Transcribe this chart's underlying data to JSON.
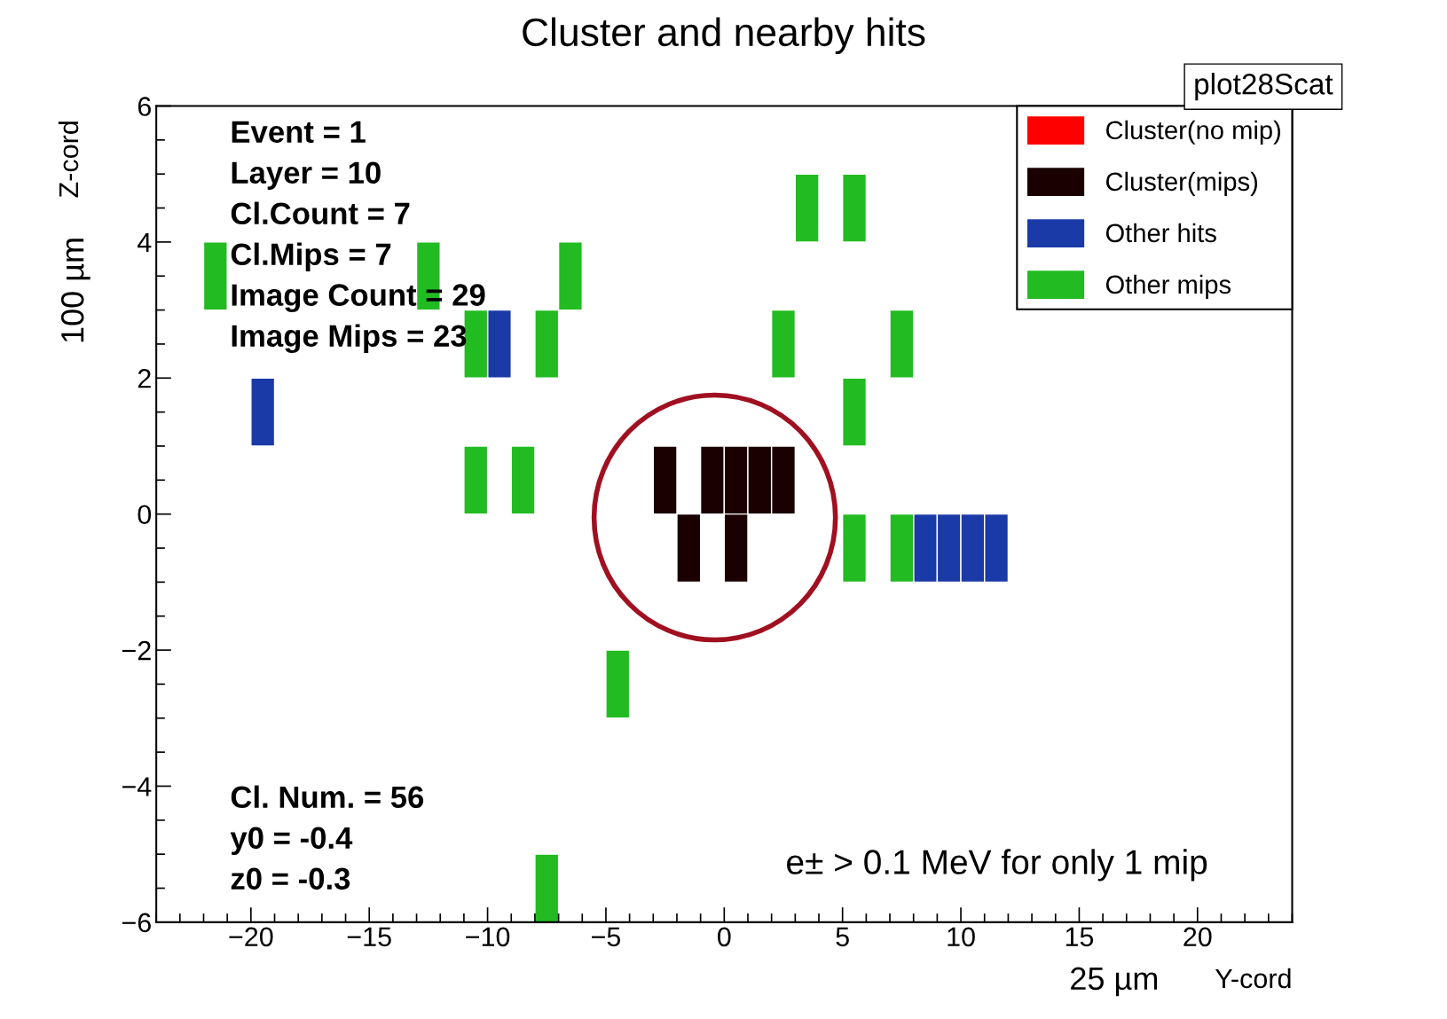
{
  "chart_data": {
    "type": "bar",
    "title": "Cluster and nearby hits",
    "xlabel": "Y-cord",
    "ylabel": "Z-cord",
    "annotations": [
      "plot28Scat",
      "Event = 1",
      "Layer = 10",
      "Cl.Count = 7",
      "Cl.Mips = 7",
      "Image Count = 29",
      "Image Mips = 23",
      "Cl. Num. = 56",
      "y0 = -0.4",
      "z0 = -0.3",
      "e± > 0.1 MeV for only 1 mip",
      "25 µm",
      "100 µm"
    ],
    "series": [
      {
        "name": "Cluster(no mip)",
        "color": "#ff0000"
      },
      {
        "name": "Cluster(mips)",
        "color": "#1a0000",
        "x": [
          -2.5,
          -0.5,
          0.5,
          1.5,
          2.5
        ],
        "base": [
          0,
          0,
          0,
          0,
          0
        ],
        "values": [
          1,
          1,
          1,
          1,
          1
        ]
      },
      {
        "color": "#1a0000",
        "x": [
          -1.5,
          0.5
        ],
        "base": [
          -1,
          -1
        ],
        "values": [
          1,
          1
        ]
      },
      {
        "name": "Other hits",
        "color": "#1a3aa8",
        "x": [
          -19.5,
          -9.5,
          8.5,
          9.5,
          10.5,
          11.5
        ],
        "base": [
          1,
          2,
          -1,
          -1,
          -1,
          -1
        ],
        "values": [
          1,
          1,
          1,
          1,
          1,
          1
        ]
      },
      {
        "name": "Other mips",
        "color": "#22bb22",
        "x": [
          -21.5,
          -12.5,
          -10.5,
          -8.5,
          -7.5,
          -6.5,
          -4.5,
          2.5,
          3.5,
          5.5,
          7.5
        ],
        "base": [
          3,
          3,
          2,
          0,
          2,
          3,
          -3,
          2,
          4,
          4,
          2
        ],
        "values": [
          1,
          1,
          1,
          1,
          1,
          1,
          1,
          1,
          1,
          1,
          1
        ]
      },
      {
        "color": "#22bb22",
        "x": [
          -10.5,
          -7.5,
          5.5,
          7.5
        ],
        "base": [
          0,
          -6,
          1,
          -1
        ],
        "values": [
          1,
          1,
          1,
          1
        ]
      },
      {
        "color": "#22bb22",
        "x": [
          5.5
        ],
        "base": [
          -1
        ],
        "values": [
          1
        ]
      }
    ],
    "xlim": [
      -24,
      24
    ],
    "xticks": [
      {
        "value": -24,
        "label": null
      },
      {
        "value": -23,
        "label": null
      },
      {
        "value": -22,
        "label": null
      },
      {
        "value": -21,
        "label": null
      },
      -20,
      {
        "value": -19,
        "label": null
      },
      {
        "value": -18,
        "label": null
      },
      {
        "value": -17,
        "label": null
      },
      {
        "value": -16,
        "label": null
      },
      -15,
      {
        "value": -14,
        "label": null
      },
      {
        "value": -13,
        "label": null
      },
      {
        "value": -12,
        "label": null
      },
      {
        "value": -11,
        "label": null
      },
      -10,
      {
        "value": -9,
        "label": null
      },
      {
        "value": -8,
        "label": null
      },
      {
        "value": -7,
        "label": null
      },
      {
        "value": -6,
        "label": null
      },
      -5,
      {
        "value": -4,
        "label": null
      },
      {
        "value": -3,
        "label": null
      },
      {
        "value": -2,
        "label": null
      },
      {
        "value": -1,
        "label": null
      },
      0,
      {
        "value": 1,
        "label": null
      },
      {
        "value": 2,
        "label": null
      },
      {
        "value": 3,
        "label": null
      },
      {
        "value": 4,
        "label": null
      },
      5,
      {
        "value": 6,
        "label": null
      },
      {
        "value": 7,
        "label": null
      },
      {
        "value": 8,
        "label": null
      },
      {
        "value": 9,
        "label": null
      },
      10,
      {
        "value": 11,
        "label": null
      },
      {
        "value": 12,
        "label": null
      },
      {
        "value": 13,
        "label": null
      },
      {
        "value": 14,
        "label": null
      },
      15,
      {
        "value": 16,
        "label": null
      },
      {
        "value": 17,
        "label": null
      },
      {
        "value": 18,
        "label": null
      },
      {
        "value": 19,
        "label": null
      },
      20,
      {
        "value": 21,
        "label": null
      },
      {
        "value": 22,
        "label": null
      },
      {
        "value": 23,
        "label": null
      },
      {
        "value": 24,
        "label": null
      }
    ],
    "ylim": [
      -6,
      6
    ],
    "yticks": [
      -6,
      {
        "value": -5.5,
        "label": null
      },
      {
        "value": -5,
        "label": null
      },
      {
        "value": -4.5,
        "label": null
      },
      -4,
      {
        "value": -3.5,
        "label": null
      },
      {
        "value": -3,
        "label": null
      },
      {
        "value": -2.5,
        "label": null
      },
      -2,
      {
        "value": -1.5,
        "label": null
      },
      {
        "value": -1,
        "label": null
      },
      {
        "value": -0.5,
        "label": null
      },
      0,
      {
        "value": 0.5,
        "label": null
      },
      {
        "value": 1,
        "label": null
      },
      {
        "value": 1.5,
        "label": null
      },
      2,
      {
        "value": 2.5,
        "label": null
      },
      {
        "value": 3,
        "label": null
      },
      {
        "value": 3.5,
        "label": null
      },
      4,
      {
        "value": 4.5,
        "label": null
      },
      {
        "value": 5,
        "label": null
      },
      {
        "value": 5.5,
        "label": null
      },
      6
    ],
    "legend": "top right",
    "grid": false
  }
}
